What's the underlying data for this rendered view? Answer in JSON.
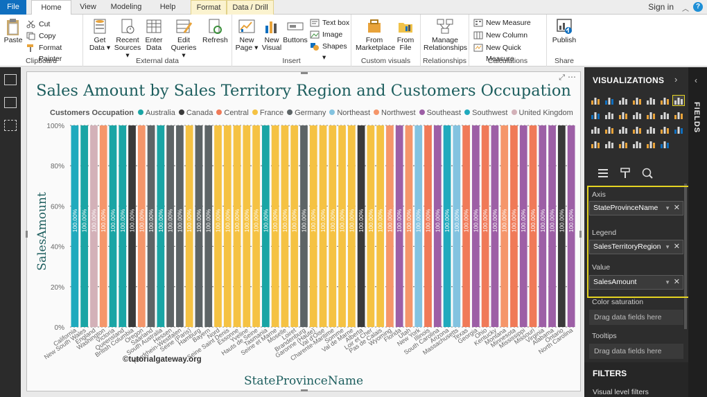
{
  "tabs": [
    "File",
    "Home",
    "View",
    "Modeling",
    "Help",
    "Format",
    "Data / Drill"
  ],
  "header": {
    "signin": "Sign in",
    "help": "?"
  },
  "ribbon": {
    "clipboard": {
      "label": "Clipboard",
      "paste": "Paste",
      "cut": "Cut",
      "copy": "Copy",
      "format_painter": "Format Painter"
    },
    "external": {
      "label": "External data",
      "get_data": [
        "Get",
        "Data ▾"
      ],
      "recent_sources": [
        "Recent",
        "Sources ▾"
      ],
      "enter_data": [
        "Enter",
        "Data"
      ],
      "edit_queries": [
        "Edit",
        "Queries ▾"
      ],
      "refresh": "Refresh"
    },
    "insert": {
      "label": "Insert",
      "new_page": [
        "New",
        "Page ▾"
      ],
      "new_visual": [
        "New",
        "Visual"
      ],
      "buttons": "Buttons",
      "text_box": "Text box",
      "image": "Image",
      "shapes": "Shapes ▾"
    },
    "custom": {
      "label": "Custom visuals",
      "from_marketplace": [
        "From",
        "Marketplace"
      ],
      "from_file": [
        "From",
        "File"
      ]
    },
    "relationships": {
      "label": "Relationships",
      "manage": [
        "Manage",
        "Relationships"
      ]
    },
    "calculations": {
      "label": "Calculations",
      "new_measure": "New Measure",
      "new_column": "New Column",
      "new_quick_measure": "New Quick Measure"
    },
    "share": {
      "label": "Share",
      "publish": "Publish"
    }
  },
  "visual": {
    "title": "Sales Amount by Sales Territory Region and Customers Occupation",
    "legend_title": "Customers Occupation",
    "xlabel": "StateProvinceName",
    "ylabel": "SalesAmount",
    "watermark": "©tutorialgateway.org"
  },
  "chart_data": {
    "type": "bar",
    "stacked": "100%",
    "title": "Sales Amount by Sales Territory Region and Customers Occupation",
    "xlabel": "StateProvinceName",
    "ylabel": "SalesAmount",
    "ylim": [
      0,
      100
    ],
    "yticks": [
      "0%",
      "20%",
      "40%",
      "60%",
      "80%",
      "100%"
    ],
    "grid": true,
    "legend_placement": "top",
    "legend": [
      {
        "name": "Australia",
        "color": "#1aa5a5"
      },
      {
        "name": "Canada",
        "color": "#3a3a3a"
      },
      {
        "name": "Central",
        "color": "#f07a58"
      },
      {
        "name": "France",
        "color": "#f5c243"
      },
      {
        "name": "Germany",
        "color": "#5d6466"
      },
      {
        "name": "Northeast",
        "color": "#83c3e0"
      },
      {
        "name": "Northwest",
        "color": "#f5966a"
      },
      {
        "name": "Southeast",
        "color": "#9d5fa6"
      },
      {
        "name": "Southwest",
        "color": "#20aabd"
      },
      {
        "name": "United Kingdom",
        "color": "#d3b1b8"
      }
    ],
    "categories": [
      "California",
      "New South Wales",
      "England",
      "Washington",
      "Victoria",
      "Queensland",
      "British Columbia",
      "Oregon",
      "Saarland",
      "South Australia",
      "Hessen",
      "Nordrhein-Westfalen",
      "Seine (Paris)",
      "Hamburg",
      "Bayern",
      "Nord",
      "Seine Saint Denis",
      "Essonne",
      "Yveline",
      "Hauts de Seine",
      "Tasmania",
      "Seine et Marne",
      "Moselle",
      "Loiret",
      "Brandenburg",
      "Garonne (Haute)",
      "Val d'Oise",
      "Charente-Maritime",
      "Somme",
      "Val de Marne",
      "Alberta",
      "Loir et Cher",
      "Pas de Calais",
      "Wyoming",
      "Florida",
      "Utah",
      "New York",
      "Illinois",
      "South Carolina",
      "Arizona",
      "Massachusetts",
      "Texas",
      "Georgia",
      "Ohio",
      "Kentucky",
      "Montana",
      "Minnesota",
      "Mississippi",
      "Missouri",
      "Virginia",
      "Alabama",
      "Ontario",
      "North Carolina"
    ],
    "series": [
      {
        "name": "Australia",
        "categories": [
          "New South Wales",
          "Victoria",
          "Queensland",
          "South Australia",
          "Tasmania"
        ]
      },
      {
        "name": "Canada",
        "categories": [
          "British Columbia",
          "Alberta",
          "Ontario"
        ]
      },
      {
        "name": "Central",
        "categories": [
          "Illinois",
          "Texas",
          "Ohio",
          "Minnesota",
          "Missouri"
        ]
      },
      {
        "name": "France",
        "categories": [
          "Seine (Paris)",
          "Nord",
          "Seine Saint Denis",
          "Essonne",
          "Yveline",
          "Hauts de Seine",
          "Seine et Marne",
          "Moselle",
          "Loiret",
          "Garonne (Haute)",
          "Val d'Oise",
          "Charente-Maritime",
          "Somme",
          "Val de Marne",
          "Loir et Cher",
          "Pas de Calais"
        ]
      },
      {
        "name": "Germany",
        "categories": [
          "Saarland",
          "Hessen",
          "Nordrhein-Westfalen",
          "Hamburg",
          "Bayern",
          "Brandenburg"
        ]
      },
      {
        "name": "Northeast",
        "categories": [
          "New York",
          "Massachusetts"
        ]
      },
      {
        "name": "Northwest",
        "categories": [
          "Washington",
          "Oregon",
          "Wyoming",
          "Utah",
          "Montana"
        ]
      },
      {
        "name": "Southeast",
        "categories": [
          "Florida",
          "South Carolina",
          "Georgia",
          "Kentucky",
          "Mississippi",
          "Virginia",
          "Alabama",
          "North Carolina"
        ]
      },
      {
        "name": "Southwest",
        "categories": [
          "California",
          "Arizona"
        ]
      },
      {
        "name": "United Kingdom",
        "categories": [
          "England"
        ]
      }
    ],
    "bar_series": [
      "Southwest",
      "Australia",
      "United Kingdom",
      "Northwest",
      "Australia",
      "Australia",
      "Canada",
      "Northwest",
      "Germany",
      "Australia",
      "Germany",
      "Germany",
      "France",
      "Germany",
      "Germany",
      "France",
      "France",
      "France",
      "France",
      "France",
      "Australia",
      "France",
      "France",
      "France",
      "Germany",
      "France",
      "France",
      "France",
      "France",
      "France",
      "Canada",
      "France",
      "France",
      "Northwest",
      "Southeast",
      "Northwest",
      "Northeast",
      "Central",
      "Southeast",
      "Southwest",
      "Northeast",
      "Central",
      "Southeast",
      "Central",
      "Southeast",
      "Northwest",
      "Central",
      "Southeast",
      "Central",
      "Southeast",
      "Southeast",
      "Canada",
      "Southeast"
    ],
    "values": [
      100,
      100,
      100,
      100,
      100,
      100,
      100,
      100,
      100,
      100,
      100,
      100,
      100,
      100,
      100,
      100,
      100,
      100,
      100,
      100,
      100,
      100,
      100,
      100,
      100,
      100,
      100,
      100,
      100,
      100,
      100,
      100,
      100,
      100,
      100,
      100,
      100,
      100,
      100,
      100,
      100,
      100,
      100,
      100,
      100,
      100,
      100,
      100,
      100,
      100,
      100,
      100,
      100
    ],
    "data_labels": "100.00%"
  },
  "pane": {
    "title": "VISUALIZATIONS",
    "fields_tab": "FIELDS",
    "axis_label": "Axis",
    "axis_value": "StateProvinceName",
    "legend_label": "Legend",
    "legend_value": "SalesTerritoryRegion",
    "value_label": "Value",
    "value_value": "SalesAmount",
    "color_sat_label": "Color saturation",
    "tooltips_label": "Tooltips",
    "drop_hint": "Drag data fields here",
    "filters_title": "FILTERS",
    "filters_sub": "Visual level filters"
  }
}
